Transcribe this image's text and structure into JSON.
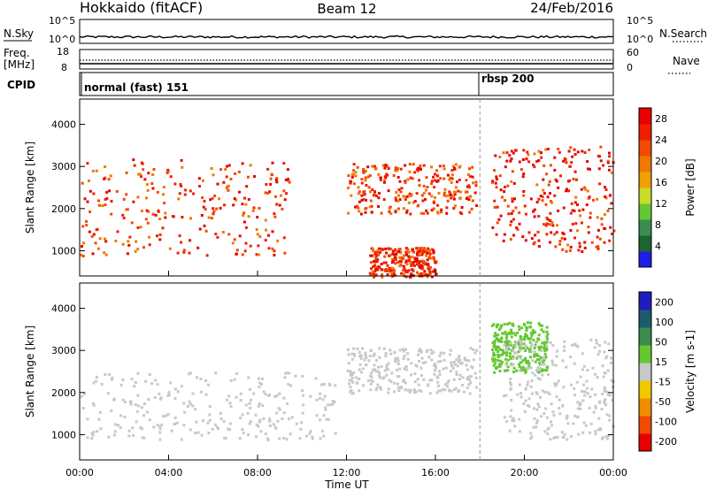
{
  "header": {
    "station": "Hokkaido (fitACF)",
    "beam": "Beam 12",
    "date": "24/Feb/2016"
  },
  "status_panels": {
    "nsky_label": "N.Sky",
    "nsearch_label": "N.Search",
    "nsky_ticks": [
      "10^5",
      "10^0"
    ],
    "nsearch_ticks": [
      "10^5",
      "10^0"
    ],
    "freq_label": "Freq.",
    "freq_unit": "[MHz]",
    "freq_ticks": [
      "18",
      "8"
    ],
    "nave_label": "Nave",
    "nave_ticks": [
      "60",
      "0"
    ],
    "cpid_label": "CPID",
    "cpid_modes": [
      {
        "name": "normal (fast) 151",
        "start_hour": 0
      },
      {
        "name": "rbsp 200",
        "start_hour": 18
      }
    ]
  },
  "colors": {
    "power_scale": [
      "#1e1ee6",
      "#1e6432",
      "#3c8c50",
      "#64c832",
      "#c8dc28",
      "#f0a000",
      "#f07800",
      "#f04b00",
      "#f01e00",
      "#e60000"
    ],
    "velocity_scale": [
      "#e60000",
      "#f04b00",
      "#f08c00",
      "#f0c800",
      "#c8c8c8",
      "#64c832",
      "#3c8c50",
      "#1e5a6e",
      "#1e1ebe"
    ]
  },
  "chart_data": [
    {
      "type": "heatmap",
      "panel": "power",
      "ylabel": "Slant Range [km]",
      "yticks": [
        "1000",
        "2000",
        "3000",
        "4000"
      ],
      "ylim": [
        400,
        4600
      ],
      "xlim": [
        0,
        24
      ],
      "colorbar": {
        "label": "Power [dB]",
        "ticks": [
          "4",
          "8",
          "12",
          "16",
          "20",
          "24",
          "28"
        ],
        "range": [
          0,
          30
        ]
      },
      "features": [
        {
          "name": "morning band",
          "t_start": 0,
          "t_end": 9.4,
          "range_km": [
            900,
            3200
          ],
          "value": 24
        },
        {
          "name": "noon echoes",
          "t_start": 12,
          "t_end": 17.8,
          "range_km": [
            1900,
            3100
          ],
          "value": 24
        },
        {
          "name": "near-range echoes",
          "t_start": 13,
          "t_end": 16,
          "range_km": [
            400,
            1100
          ],
          "value": 25
        },
        {
          "name": "evening echoes",
          "t_start": 18.5,
          "t_end": 24,
          "range_km": [
            1000,
            3500
          ],
          "value": 26
        }
      ]
    },
    {
      "type": "heatmap",
      "panel": "velocity",
      "ylabel": "Slant Range [km]",
      "xlabel": "Time UT",
      "xticks": [
        "00:00",
        "04:00",
        "08:00",
        "12:00",
        "16:00",
        "20:00",
        "00:00"
      ],
      "yticks": [
        "1000",
        "2000",
        "3000",
        "4000"
      ],
      "ylim": [
        400,
        4600
      ],
      "xlim": [
        0,
        24
      ],
      "colorbar": {
        "label": "Velocity [m s-1]",
        "ticks": [
          "200",
          "100",
          "50",
          "15",
          "-15",
          "-50",
          "-100",
          "-200"
        ],
        "range": [
          -250,
          250
        ]
      },
      "features": [
        {
          "name": "ground scatter band",
          "t_start": 0,
          "t_end": 11.5,
          "range_km": [
            900,
            2500
          ],
          "value": 0
        },
        {
          "name": "noon ground scatter",
          "t_start": 12,
          "t_end": 17.8,
          "range_km": [
            2000,
            3100
          ],
          "value": 0
        },
        {
          "name": "evening positive flow",
          "t_start": 18.5,
          "t_end": 21,
          "range_km": [
            2500,
            3700
          ],
          "value": 60
        },
        {
          "name": "evening ground scatter",
          "t_start": 19,
          "t_end": 24,
          "range_km": [
            900,
            3300
          ],
          "value": 0
        }
      ]
    }
  ]
}
